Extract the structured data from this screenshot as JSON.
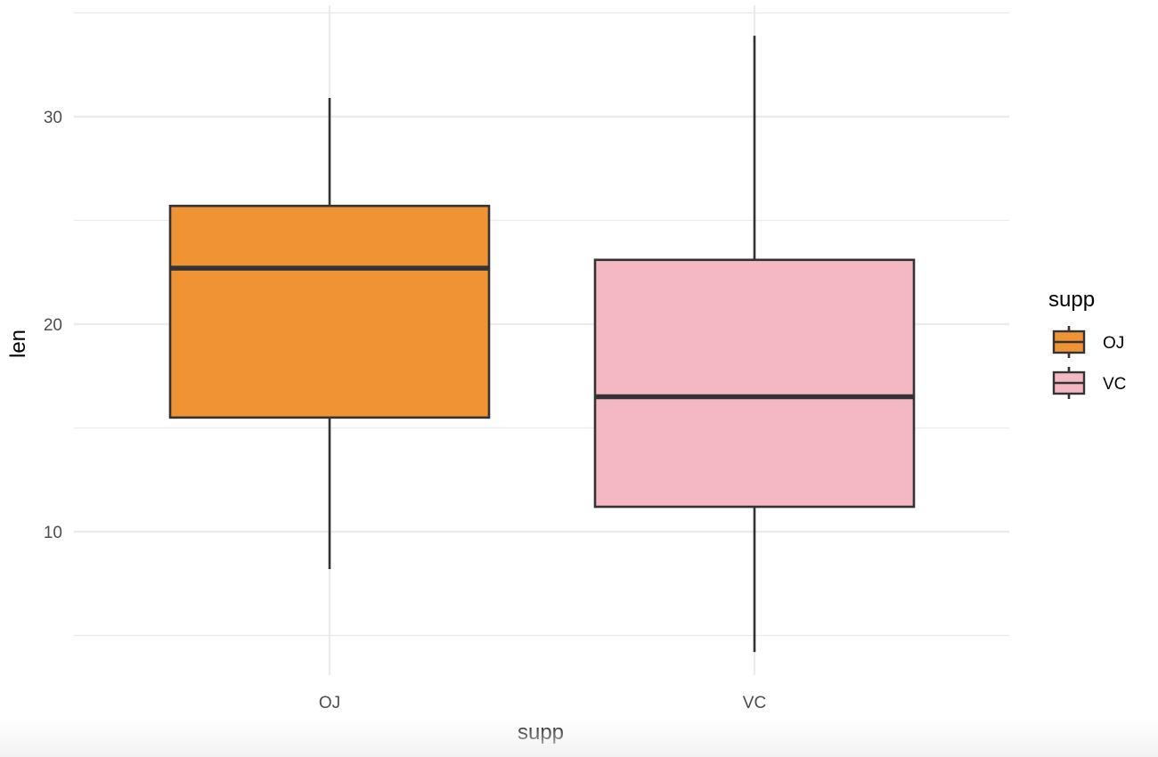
{
  "chart_data": {
    "type": "boxplot",
    "xlabel": "supp",
    "ylabel": "len",
    "categories": [
      "OJ",
      "VC"
    ],
    "ylim": [
      3.0,
      36.0
    ],
    "y_ticks": [
      10,
      20,
      30
    ],
    "y_tick_labels": [
      "10",
      "20",
      "30"
    ],
    "grid": true,
    "legend": {
      "title": "supp",
      "position": "right",
      "entries": [
        "OJ",
        "VC"
      ]
    },
    "series": [
      {
        "name": "OJ",
        "color": "#ef9335",
        "whisker_low": 8.2,
        "q1": 15.5,
        "median": 22.7,
        "q3": 25.7,
        "whisker_high": 30.9
      },
      {
        "name": "VC",
        "color": "#f4b8c4",
        "whisker_low": 4.2,
        "q1": 11.2,
        "median": 16.5,
        "q3": 23.1,
        "whisker_high": 33.9
      }
    ]
  }
}
